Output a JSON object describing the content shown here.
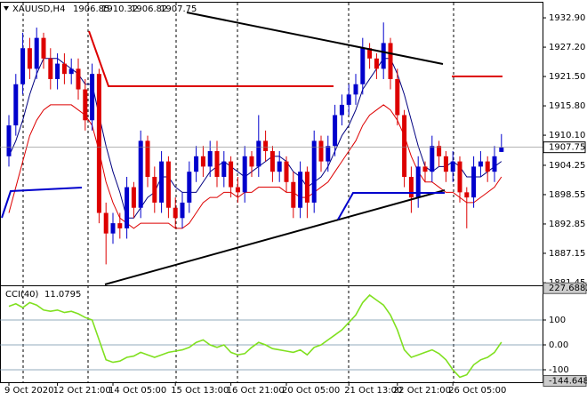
{
  "chart_data": [
    {
      "type": "candlestick",
      "title": "XAUUSD,H4",
      "categories": [
        "9 Oct 2020",
        null,
        null,
        null,
        null,
        null,
        null,
        "12 Oct 21:00",
        null,
        null,
        null,
        null,
        null,
        null,
        null,
        "14 Oct 05:00",
        null,
        null,
        null,
        null,
        null,
        null,
        null,
        null,
        "15 Oct 13:00",
        null,
        null,
        null,
        null,
        null,
        null,
        null,
        "16 Oct 21:00",
        null,
        null,
        null,
        null,
        null,
        null,
        null,
        "20 Oct 05:00",
        null,
        null,
        null,
        null,
        null,
        null,
        null,
        null,
        "21 Oct 13:00",
        null,
        null,
        null,
        null,
        null,
        null,
        "22 Oct 21:00",
        null,
        null,
        null,
        null,
        null,
        null,
        null,
        "26 Oct 05:00",
        null,
        null,
        null,
        null,
        null,
        null,
        null
      ],
      "open": [
        1906,
        1912,
        1920,
        1927,
        1923,
        1929,
        1925,
        1921,
        1924,
        1922,
        1923,
        1919,
        1913,
        1922,
        1895,
        1891,
        1893,
        1892,
        1900,
        1896,
        1909,
        1902,
        1897,
        1905,
        1896,
        1894,
        1897,
        1903,
        1906,
        1904,
        1907,
        1902,
        1905,
        1900,
        1899,
        1906,
        1904,
        1909,
        1907,
        1903,
        1905,
        1901,
        1896,
        1903,
        1897,
        1909,
        1905,
        1908,
        1914,
        1916,
        1918,
        1920,
        1927,
        1925,
        1923,
        1928,
        1921,
        1914,
        1902,
        1898,
        1904,
        1903,
        1908,
        1906,
        1903,
        1905,
        1899,
        1898,
        1904,
        1905,
        1903,
        1906.85
      ],
      "high": [
        1914,
        1922,
        1930,
        1929,
        1931,
        1930,
        1927,
        1926,
        1926,
        1925,
        1925,
        1921,
        1924,
        1923,
        1897,
        1895,
        1895,
        1902,
        1901,
        1911,
        1910,
        1904,
        1907,
        1906,
        1898,
        1899,
        1905,
        1908,
        1908,
        1909,
        1909,
        1907,
        1906,
        1902,
        1908,
        1907,
        1914,
        1911,
        1908,
        1907,
        1906,
        1903,
        1905,
        1904,
        1911,
        1910,
        1910,
        1916,
        1918,
        1920,
        1922,
        1929,
        1928,
        1926,
        1932,
        1929,
        1923,
        1915,
        1904,
        1906,
        1905,
        1910,
        1909,
        1907,
        1907,
        1906,
        1900,
        1906,
        1907,
        1906,
        1908,
        1910.32
      ],
      "low": [
        1904,
        1910,
        1918,
        1921,
        1921,
        1923,
        1919,
        1919,
        1920,
        1920,
        1917,
        1911,
        1911,
        1893,
        1885,
        1889,
        1890,
        1890,
        1894,
        1894,
        1900,
        1895,
        1895,
        1894,
        1892,
        1892,
        1895,
        1901,
        1902,
        1902,
        1900,
        1900,
        1898,
        1897,
        1897,
        1902,
        1902,
        1905,
        1901,
        1901,
        1899,
        1894,
        1894,
        1894,
        1895,
        1903,
        1903,
        1906,
        1912,
        1914,
        1916,
        1918,
        1923,
        1921,
        1921,
        1919,
        1912,
        1900,
        1895,
        1896,
        1901,
        1901,
        1904,
        1901,
        1901,
        1897,
        1892,
        1896,
        1902,
        1901,
        1901,
        1906.82
      ],
      "close": [
        1912,
        1920,
        1927,
        1923,
        1929,
        1925,
        1921,
        1924,
        1922,
        1923,
        1919,
        1913,
        1922,
        1895,
        1891,
        1893,
        1892,
        1900,
        1896,
        1909,
        1902,
        1897,
        1905,
        1896,
        1894,
        1897,
        1903,
        1906,
        1904,
        1907,
        1902,
        1905,
        1900,
        1899,
        1906,
        1904,
        1909,
        1907,
        1903,
        1905,
        1901,
        1896,
        1903,
        1897,
        1909,
        1905,
        1908,
        1914,
        1916,
        1918,
        1920,
        1927,
        1925,
        1923,
        1928,
        1921,
        1914,
        1902,
        1898,
        1904,
        1903,
        1908,
        1906,
        1903,
        1905,
        1899,
        1898,
        1904,
        1905,
        1903,
        1906,
        1907.75
      ],
      "up_color": "#0000cc",
      "down_color": "#dd0000",
      "overlays": [
        {
          "color": "#000080",
          "values": [
            1906,
            1909,
            1913,
            1918,
            1922,
            1925,
            1925,
            1925,
            1924,
            1923,
            1922,
            1920,
            1920,
            1914,
            1908,
            1903,
            1899,
            1894,
            1894,
            1896,
            1898,
            1899,
            1902,
            1902,
            1900,
            1899,
            1899,
            1899,
            1901,
            1903,
            1904,
            1905,
            1904,
            1903,
            1902,
            1903,
            1904,
            1905,
            1906,
            1906,
            1905,
            1903,
            1902,
            1900,
            1901,
            1902,
            1904,
            1907,
            1910,
            1912,
            1915,
            1919,
            1921,
            1923,
            1925,
            1925,
            1922,
            1918,
            1913,
            1908,
            1904,
            1903,
            1904,
            1904,
            1905,
            1904,
            1902,
            1902,
            1902,
            1903,
            1904,
            1905
          ]
        },
        {
          "color": "#dd0000",
          "values": [
            1895,
            1900,
            1905,
            1910,
            1913,
            1915,
            1916,
            1916,
            1916,
            1916,
            1915,
            1914,
            1912,
            1907,
            1901,
            1897,
            1894,
            1893,
            1892,
            1893,
            1893,
            1893,
            1893,
            1893,
            1892,
            1892,
            1893,
            1895,
            1897,
            1898,
            1898,
            1899,
            1899,
            1898,
            1899,
            1899,
            1900,
            1900,
            1900,
            1900,
            1899,
            1899,
            1898,
            1898,
            1899,
            1900,
            1901,
            1903,
            1905,
            1907,
            1909,
            1912,
            1914,
            1915,
            1916,
            1915,
            1913,
            1910,
            1906,
            1903,
            1901,
            1901,
            1900,
            1899,
            1899,
            1898,
            1897,
            1897,
            1898,
            1899,
            1900,
            1902
          ]
        }
      ],
      "ylim": [
        1881.1,
        1935.5
      ],
      "yticks": [
        {
          "value": 1932.9,
          "label": "1932.90"
        },
        {
          "value": 1927.2,
          "label": "1927.20"
        },
        {
          "value": 1921.5,
          "label": "1921.50"
        },
        {
          "value": 1915.8,
          "label": "1915.80"
        },
        {
          "value": 1910.1,
          "label": "1910.10"
        },
        {
          "value": 1904.25,
          "label": "1904.25"
        },
        {
          "value": 1898.55,
          "label": "1898.55"
        },
        {
          "value": 1892.85,
          "label": "1892.85"
        },
        {
          "value": 1887.15,
          "label": "1887.15"
        },
        {
          "value": 1881.45,
          "label": "1881.45"
        }
      ]
    },
    {
      "type": "line",
      "title": "CCI(40)",
      "series": [
        {
          "color": "#80e020",
          "values": [
            155,
            165,
            150,
            170,
            160,
            140,
            135,
            140,
            130,
            135,
            125,
            110,
            100,
            20,
            -60,
            -70,
            -65,
            -50,
            -45,
            -30,
            -40,
            -50,
            -40,
            -30,
            -25,
            -20,
            -10,
            10,
            20,
            0,
            -10,
            0,
            -30,
            -40,
            -35,
            -10,
            10,
            0,
            -15,
            -20,
            -25,
            -30,
            -20,
            -40,
            -10,
            0,
            20,
            40,
            60,
            90,
            120,
            170,
            200,
            180,
            160,
            120,
            60,
            -20,
            -50,
            -40,
            -30,
            -20,
            -35,
            -60,
            -100,
            -130,
            -120,
            -80,
            -60,
            -50,
            -30,
            11.0795
          ]
        }
      ],
      "ylim": [
        -150,
        235.7
      ],
      "yticks": [
        227.6882,
        100,
        {
          "value": 0,
          "label": "0.00"
        },
        -100,
        -144.6484
      ],
      "grid_levels": [
        100,
        0,
        -100
      ]
    }
  ]
}
